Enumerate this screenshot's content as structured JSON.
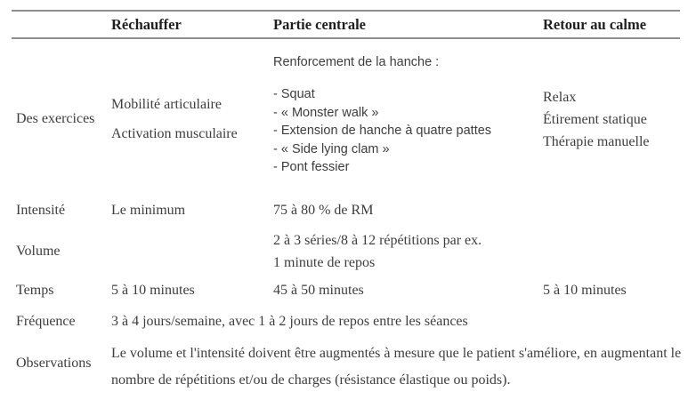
{
  "table": {
    "headers": {
      "rechauffer": "Réchauffer",
      "partie_centrale": "Partie centrale",
      "retour_au_calme": "Retour au calme"
    },
    "rows": {
      "exercices": {
        "label": "Des exercices",
        "rechauffer": [
          "Mobilité articulaire",
          "Activation musculaire"
        ],
        "centrale": {
          "intro": "Renforcement de la hanche :",
          "items": [
            "- Squat",
            "- « Monster walk »",
            "- Extension de hanche à quatre pattes",
            "- « Side lying clam »",
            "- Pont fessier"
          ]
        },
        "calme": [
          "Relax",
          "Étirement statique",
          "Thérapie manuelle"
        ]
      },
      "intensite": {
        "label": "Intensité",
        "rechauffer": "Le minimum",
        "centrale": "75 à 80 % de RM"
      },
      "volume": {
        "label": "Volume",
        "centrale": [
          "2 à 3 séries/8 à 12 répétitions par ex.",
          "1 minute de repos"
        ]
      },
      "temps": {
        "label": "Temps",
        "rechauffer": "5 à 10 minutes",
        "centrale": "45 à 50 minutes",
        "calme": "5 à 10 minutes"
      },
      "frequence": {
        "label": "Fréquence",
        "value": "3 à 4 jours/semaine, avec 1 à 2 jours de repos entre les séances"
      },
      "observations": {
        "label": "Observations",
        "value": "Le volume et l'intensité doivent être augmentés à mesure que le patient s'améliore, en augmentant le nombre de répétitions et/ou de charges (résistance élastique ou poids)."
      }
    }
  },
  "colors": {
    "text": "#3d3d3d",
    "header_text": "#1f1f1f",
    "rule": "#8e8e8e",
    "background": "#ffffff"
  }
}
